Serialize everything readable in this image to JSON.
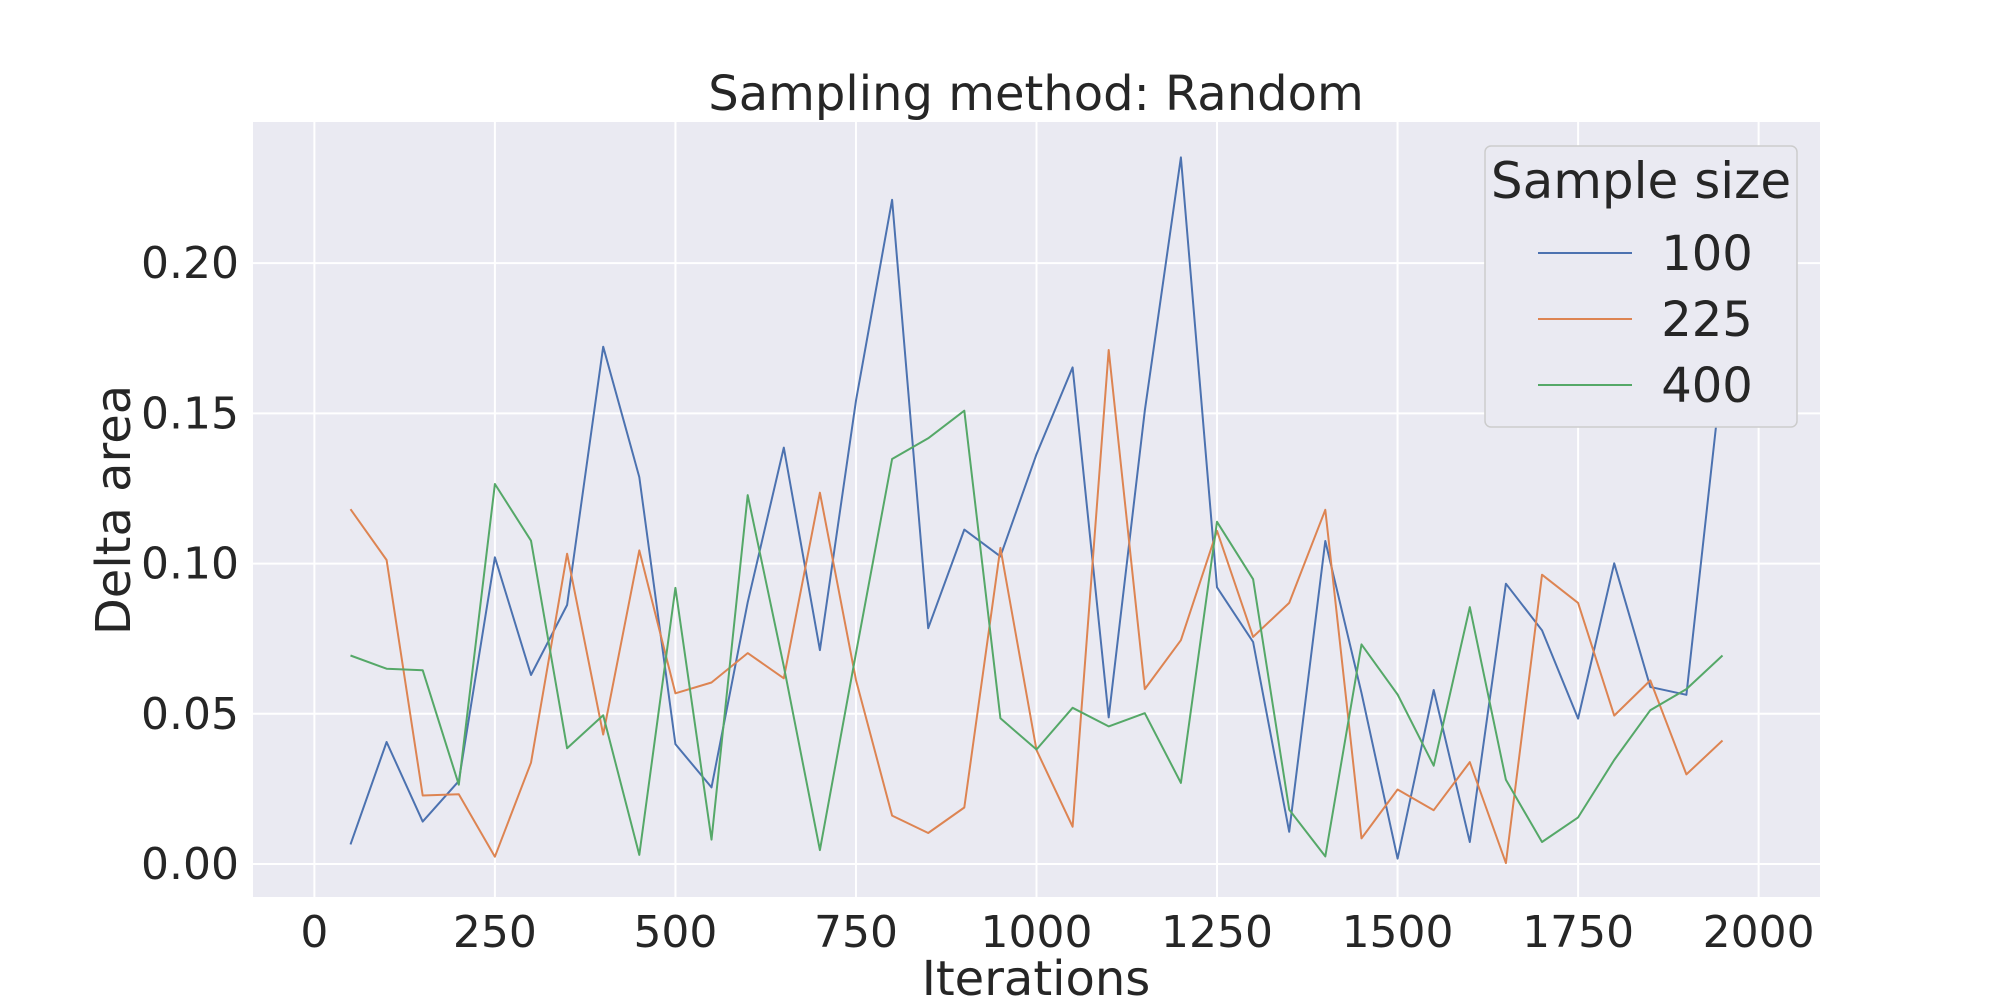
{
  "chart_data": {
    "type": "line",
    "title": "Sampling method: Random",
    "xlabel": "Iterations",
    "ylabel": "Delta area",
    "xlim": [
      -85,
      2085
    ],
    "ylim": [
      -0.011,
      0.247
    ],
    "xticks": [
      0,
      250,
      500,
      750,
      1000,
      1250,
      1500,
      1750,
      2000
    ],
    "yticks": [
      0.0,
      0.05,
      0.1,
      0.15,
      0.2
    ],
    "xtick_labels": [
      "0",
      "250",
      "500",
      "750",
      "1000",
      "1250",
      "1500",
      "1750",
      "2000"
    ],
    "ytick_labels": [
      "0.00",
      "0.05",
      "0.10",
      "0.15",
      "0.20"
    ],
    "grid": true,
    "legend": {
      "title": "Sample size",
      "placement": "top-right"
    },
    "x": [
      50,
      100,
      150,
      200,
      250,
      300,
      350,
      400,
      450,
      500,
      550,
      600,
      650,
      700,
      750,
      800,
      850,
      900,
      950,
      1000,
      1050,
      1100,
      1150,
      1200,
      1250,
      1300,
      1350,
      1400,
      1450,
      1500,
      1550,
      1600,
      1650,
      1700,
      1750,
      1800,
      1850,
      1900,
      1950
    ],
    "series": [
      {
        "name": "100",
        "color": "#4c72b0",
        "values": [
          0.0065,
          0.0406,
          0.0141,
          0.0276,
          0.1021,
          0.0629,
          0.0862,
          0.1722,
          0.1288,
          0.0399,
          0.0255,
          0.0871,
          0.1386,
          0.0712,
          0.1543,
          0.2211,
          0.0785,
          0.1113,
          0.1024,
          0.1364,
          0.1653,
          0.0488,
          0.1509,
          0.2352,
          0.0921,
          0.0739,
          0.0107,
          0.1075,
          0.0569,
          0.0018,
          0.0579,
          0.0073,
          0.0933,
          0.0778,
          0.0484,
          0.1001,
          0.0589,
          0.0563,
          0.1652
        ]
      },
      {
        "name": "225",
        "color": "#dd8452",
        "values": [
          0.1181,
          0.1012,
          0.0228,
          0.0232,
          0.0024,
          0.0337,
          0.1033,
          0.0431,
          0.1044,
          0.0568,
          0.0604,
          0.0702,
          0.0618,
          0.1236,
          0.0612,
          0.0161,
          0.0103,
          0.0188,
          0.1052,
          0.0379,
          0.0124,
          0.1711,
          0.0582,
          0.0745,
          0.1109,
          0.0756,
          0.0869,
          0.1179,
          0.0085,
          0.0248,
          0.0179,
          0.0339,
          0.0003,
          0.0963,
          0.0869,
          0.0494,
          0.0611,
          0.0298,
          0.0411
        ]
      },
      {
        "name": "400",
        "color": "#55a868",
        "values": [
          0.0694,
          0.065,
          0.0645,
          0.0264,
          0.1265,
          0.1076,
          0.0385,
          0.0495,
          0.003,
          0.0919,
          0.0081,
          0.1228,
          0.0658,
          0.0046,
          0.0702,
          0.1348,
          0.1417,
          0.1509,
          0.0485,
          0.0381,
          0.052,
          0.0458,
          0.0502,
          0.027,
          0.1139,
          0.0948,
          0.0181,
          0.0025,
          0.0731,
          0.0564,
          0.0327,
          0.0855,
          0.028,
          0.0073,
          0.0155,
          0.0346,
          0.0512,
          0.0582,
          0.0694
        ]
      }
    ]
  },
  "style": {
    "plot_background": "#eaeaf2",
    "grid_color": "#ffffff",
    "text_color": "#262626",
    "legend_background": "#eaeaf2",
    "legend_border": "#cccccc"
  }
}
